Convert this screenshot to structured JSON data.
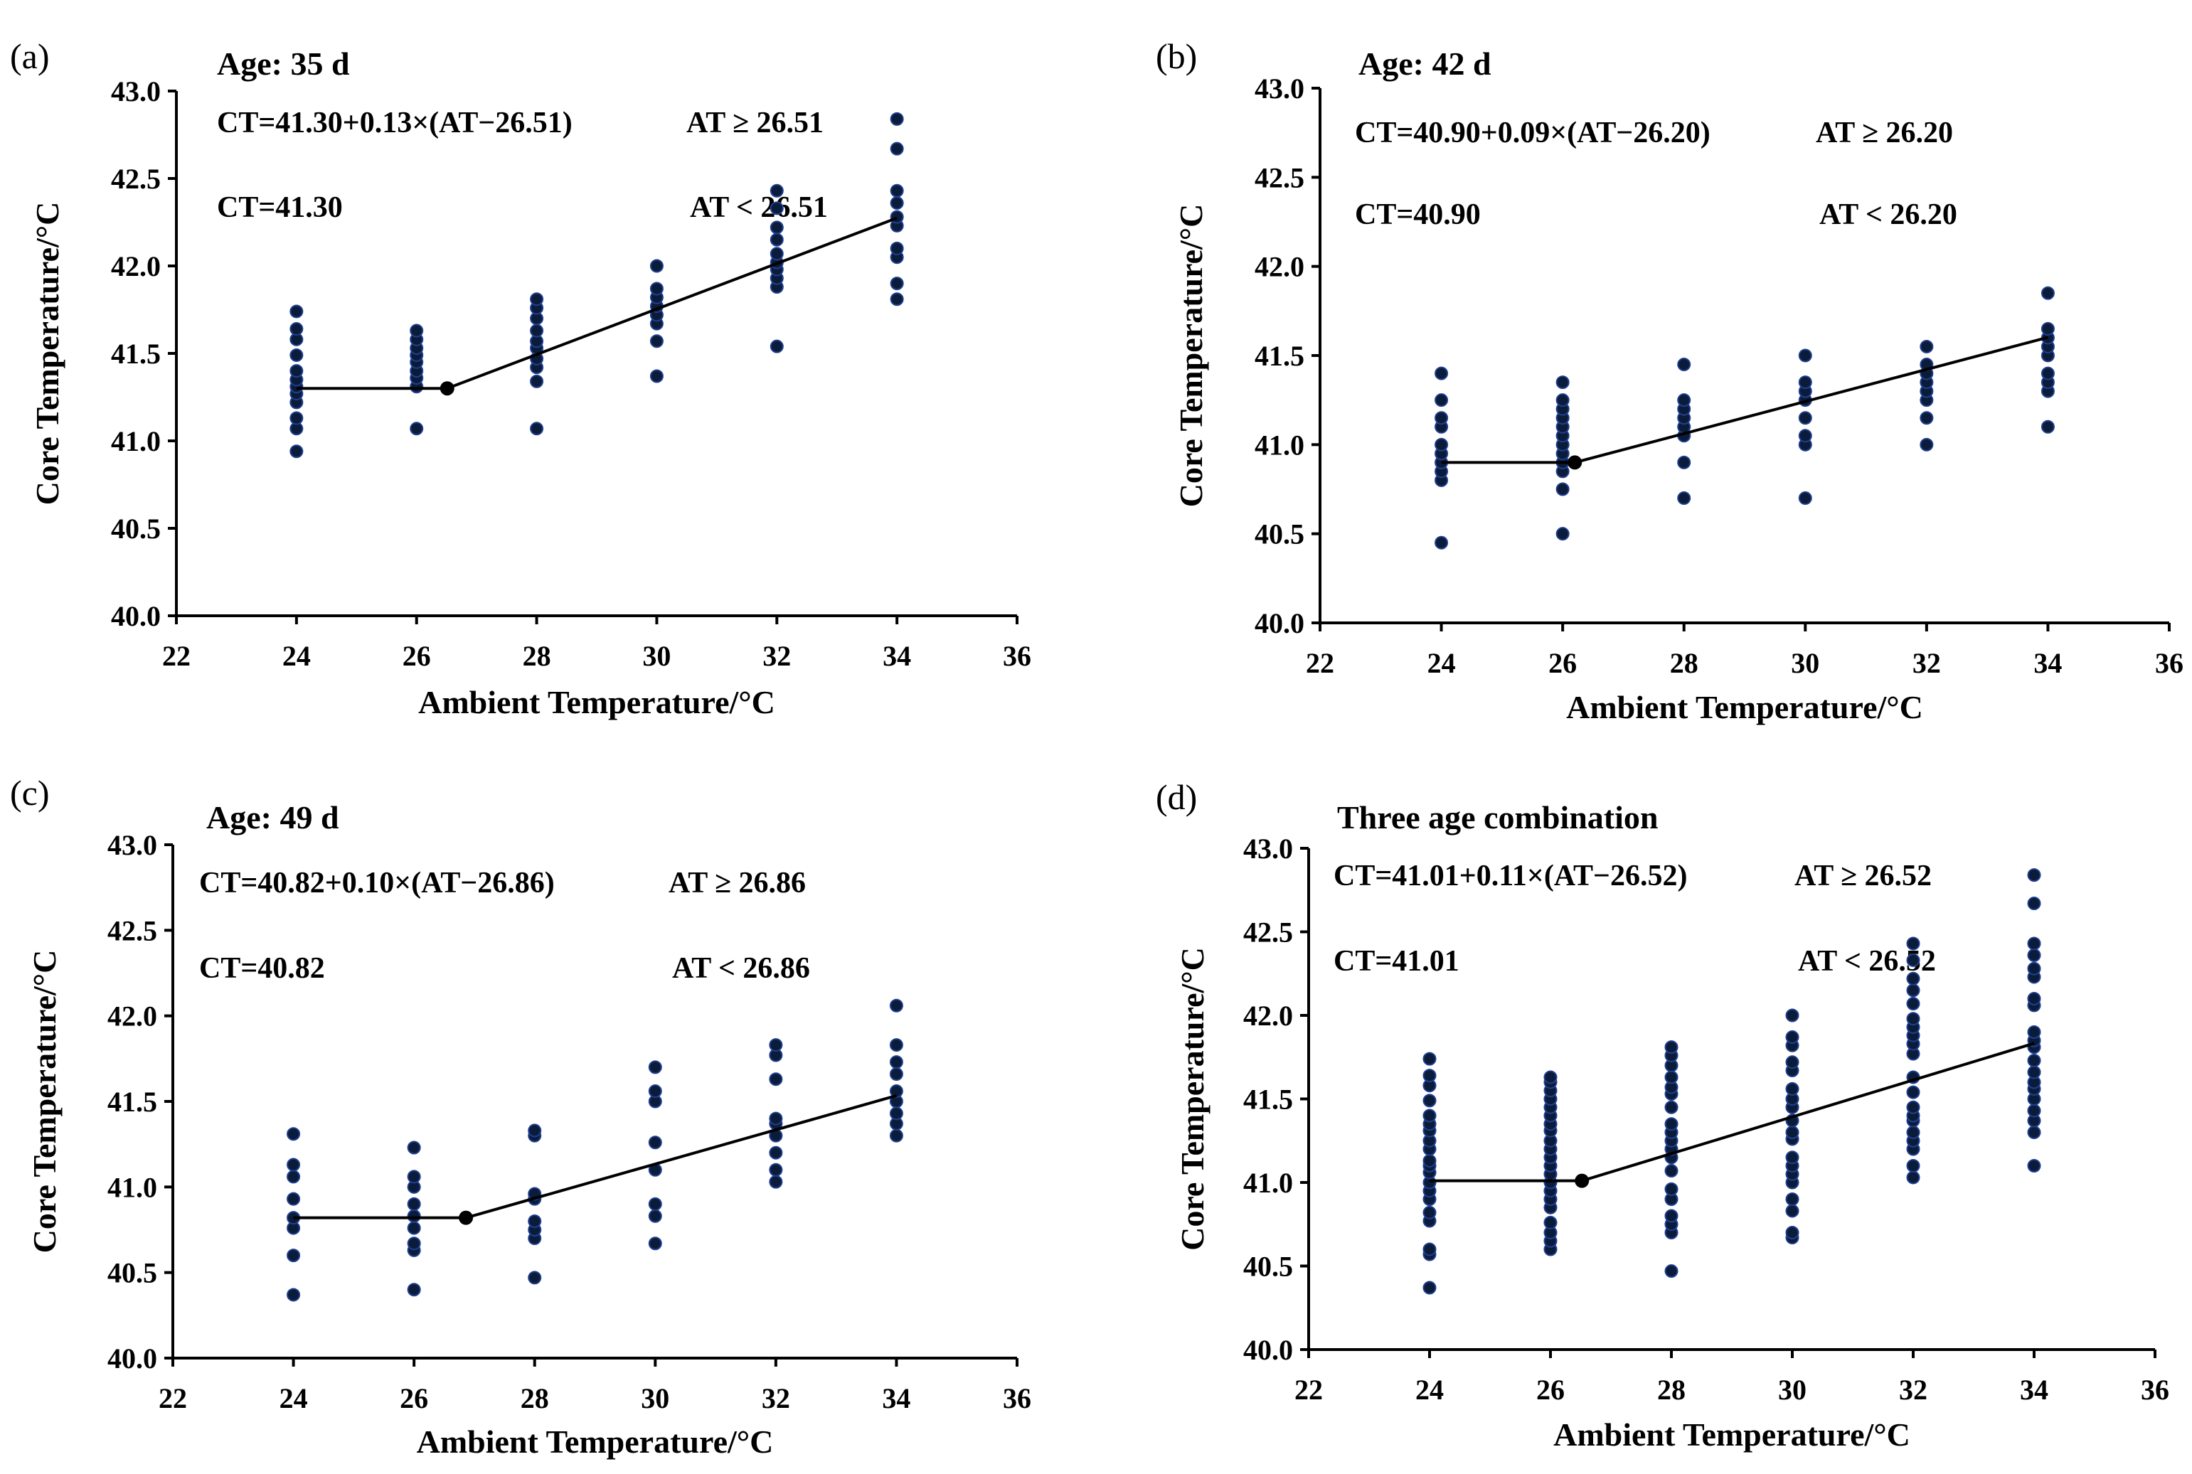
{
  "chart_data": [
    {
      "type": "scatter",
      "panel_label": "(a)",
      "title": "Age: 35 d",
      "xlabel": "Ambient Temperature/°C",
      "ylabel": "Core Temperature/°C",
      "xlim": [
        22,
        36
      ],
      "ylim": [
        40.0,
        43.0
      ],
      "xticks": [
        "22",
        "24",
        "26",
        "28",
        "30",
        "32",
        "34",
        "36"
      ],
      "yticks": [
        "40.0",
        "40.5",
        "41.0",
        "41.5",
        "42.0",
        "42.5",
        "43.0"
      ],
      "equation_upper": "CT=41.30+0.13×(AT−26.51)",
      "condition_upper": "AT ≥ 26.51",
      "equation_lower": "CT=41.30",
      "condition_lower": "AT < 26.51",
      "breakpoint": 26.51,
      "plateau": 41.3,
      "slope": 0.13,
      "points": [
        {
          "x": 24,
          "y": [
            40.94,
            41.07,
            41.13,
            41.22,
            41.27,
            41.31,
            41.35,
            41.4,
            41.49,
            41.58,
            41.64,
            41.74
          ]
        },
        {
          "x": 26,
          "y": [
            41.07,
            41.31,
            41.36,
            41.4,
            41.45,
            41.49,
            41.53,
            41.58,
            41.63
          ]
        },
        {
          "x": 28,
          "y": [
            41.07,
            41.34,
            41.42,
            41.47,
            41.53,
            41.57,
            41.63,
            41.7,
            41.76,
            41.81
          ]
        },
        {
          "x": 30,
          "y": [
            41.37,
            41.57,
            41.67,
            41.72,
            41.77,
            41.82,
            41.87,
            42.0
          ]
        },
        {
          "x": 32,
          "y": [
            41.54,
            41.88,
            41.93,
            41.98,
            42.02,
            42.07,
            42.15,
            42.22,
            42.33,
            42.43
          ]
        },
        {
          "x": 34,
          "y": [
            41.81,
            41.9,
            42.05,
            42.1,
            42.23,
            42.28,
            42.36,
            42.43,
            42.67,
            42.84
          ]
        }
      ]
    },
    {
      "type": "scatter",
      "panel_label": "(b)",
      "title": "Age: 42 d",
      "xlabel": "Ambient Temperature/°C",
      "ylabel": "Core Temperature/°C",
      "xlim": [
        22,
        36
      ],
      "ylim": [
        40.0,
        43.0
      ],
      "xticks": [
        "22",
        "24",
        "26",
        "28",
        "30",
        "32",
        "34",
        "36"
      ],
      "yticks": [
        "40.0",
        "40.5",
        "41.0",
        "41.5",
        "42.0",
        "42.5",
        "43.0"
      ],
      "equation_upper": "CT=40.90+0.09×(AT−26.20)",
      "condition_upper": "AT ≥ 26.20",
      "equation_lower": "CT=40.90",
      "condition_lower": "AT < 26.20",
      "breakpoint": 26.2,
      "plateau": 40.9,
      "slope": 0.09,
      "points": [
        {
          "x": 24,
          "y": [
            40.45,
            40.8,
            40.85,
            40.9,
            40.95,
            41.0,
            41.1,
            41.15,
            41.25,
            41.4
          ]
        },
        {
          "x": 26,
          "y": [
            40.5,
            40.75,
            40.85,
            40.9,
            40.95,
            41.0,
            41.05,
            41.1,
            41.15,
            41.2,
            41.25,
            41.35
          ]
        },
        {
          "x": 28,
          "y": [
            40.7,
            40.9,
            41.05,
            41.1,
            41.15,
            41.2,
            41.25,
            41.45
          ]
        },
        {
          "x": 30,
          "y": [
            40.7,
            41.0,
            41.05,
            41.15,
            41.25,
            41.3,
            41.35,
            41.5
          ]
        },
        {
          "x": 32,
          "y": [
            41.0,
            41.15,
            41.25,
            41.3,
            41.35,
            41.4,
            41.45,
            41.55
          ]
        },
        {
          "x": 34,
          "y": [
            41.1,
            41.3,
            41.35,
            41.4,
            41.5,
            41.55,
            41.6,
            41.65,
            41.85
          ]
        }
      ]
    },
    {
      "type": "scatter",
      "panel_label": "(c)",
      "title": "Age: 49 d",
      "xlabel": "Ambient Temperature/°C",
      "ylabel": "Core Temperature/°C",
      "xlim": [
        22,
        36
      ],
      "ylim": [
        40.0,
        43.0
      ],
      "xticks": [
        "22",
        "24",
        "26",
        "28",
        "30",
        "32",
        "34",
        "36"
      ],
      "yticks": [
        "40.0",
        "40.5",
        "41.0",
        "41.5",
        "42.0",
        "42.5",
        "43.0"
      ],
      "equation_upper": "CT=40.82+0.10×(AT−26.86)",
      "condition_upper": "AT ≥ 26.86",
      "equation_lower": "CT=40.82",
      "condition_lower": "AT < 26.86",
      "breakpoint": 26.86,
      "plateau": 40.82,
      "slope": 0.1,
      "points": [
        {
          "x": 24,
          "y": [
            40.37,
            40.6,
            40.76,
            40.82,
            40.93,
            41.06,
            41.13,
            41.31
          ]
        },
        {
          "x": 26,
          "y": [
            40.4,
            40.63,
            40.67,
            40.76,
            40.83,
            40.9,
            41.0,
            41.06,
            41.23
          ]
        },
        {
          "x": 28,
          "y": [
            40.47,
            40.7,
            40.75,
            40.8,
            40.93,
            40.96,
            41.3,
            41.33
          ]
        },
        {
          "x": 30,
          "y": [
            40.67,
            40.83,
            40.9,
            41.1,
            41.26,
            41.5,
            41.56,
            41.7
          ]
        },
        {
          "x": 32,
          "y": [
            41.03,
            41.1,
            41.2,
            41.3,
            41.37,
            41.4,
            41.63,
            41.77,
            41.83
          ]
        },
        {
          "x": 34,
          "y": [
            41.3,
            41.37,
            41.43,
            41.5,
            41.56,
            41.66,
            41.73,
            41.83,
            42.06
          ]
        }
      ]
    },
    {
      "type": "scatter",
      "panel_label": "(d)",
      "title": "Three age combination",
      "xlabel": "Ambient Temperature/°C",
      "ylabel": "Core Temperature/°C",
      "xlim": [
        22,
        36
      ],
      "ylim": [
        40.0,
        43.0
      ],
      "xticks": [
        "22",
        "24",
        "26",
        "28",
        "30",
        "32",
        "34",
        "36"
      ],
      "yticks": [
        "40.0",
        "40.5",
        "41.0",
        "41.5",
        "42.0",
        "42.5",
        "43.0"
      ],
      "equation_upper": "CT=41.01+0.11×(AT−26.52)",
      "condition_upper": "AT ≥ 26.52",
      "equation_lower": "CT=41.01",
      "condition_lower": "AT < 26.52",
      "breakpoint": 26.52,
      "plateau": 41.01,
      "slope": 0.11,
      "points": [
        {
          "x": 24,
          "y": [
            40.37,
            40.57,
            40.6,
            40.77,
            40.82,
            40.9,
            40.95,
            41.0,
            41.06,
            41.1,
            41.13,
            41.2,
            41.25,
            41.31,
            41.35,
            41.4,
            41.49,
            41.58,
            41.64,
            41.74
          ]
        },
        {
          "x": 26,
          "y": [
            40.6,
            40.65,
            40.7,
            40.76,
            40.85,
            40.9,
            40.95,
            41.0,
            41.05,
            41.1,
            41.15,
            41.2,
            41.25,
            41.31,
            41.35,
            41.4,
            41.45,
            41.5,
            41.55,
            41.6,
            41.63
          ]
        },
        {
          "x": 28,
          "y": [
            40.47,
            40.7,
            40.75,
            40.8,
            40.9,
            40.96,
            41.07,
            41.15,
            41.2,
            41.25,
            41.3,
            41.35,
            41.45,
            41.53,
            41.57,
            41.63,
            41.7,
            41.76,
            41.81
          ]
        },
        {
          "x": 30,
          "y": [
            40.67,
            40.7,
            40.83,
            40.9,
            41.0,
            41.05,
            41.1,
            41.15,
            41.26,
            41.3,
            41.37,
            41.45,
            41.5,
            41.56,
            41.67,
            41.72,
            41.82,
            41.87,
            42.0
          ]
        },
        {
          "x": 32,
          "y": [
            41.03,
            41.1,
            41.2,
            41.25,
            41.3,
            41.37,
            41.4,
            41.45,
            41.54,
            41.63,
            41.77,
            41.83,
            41.88,
            41.93,
            41.98,
            42.07,
            42.15,
            42.22,
            42.33,
            42.43
          ]
        },
        {
          "x": 34,
          "y": [
            41.1,
            41.3,
            41.37,
            41.43,
            41.5,
            41.56,
            41.6,
            41.66,
            41.73,
            41.81,
            41.85,
            41.9,
            42.06,
            42.1,
            42.23,
            42.28,
            42.36,
            42.43,
            42.67,
            42.84
          ]
        }
      ]
    }
  ]
}
